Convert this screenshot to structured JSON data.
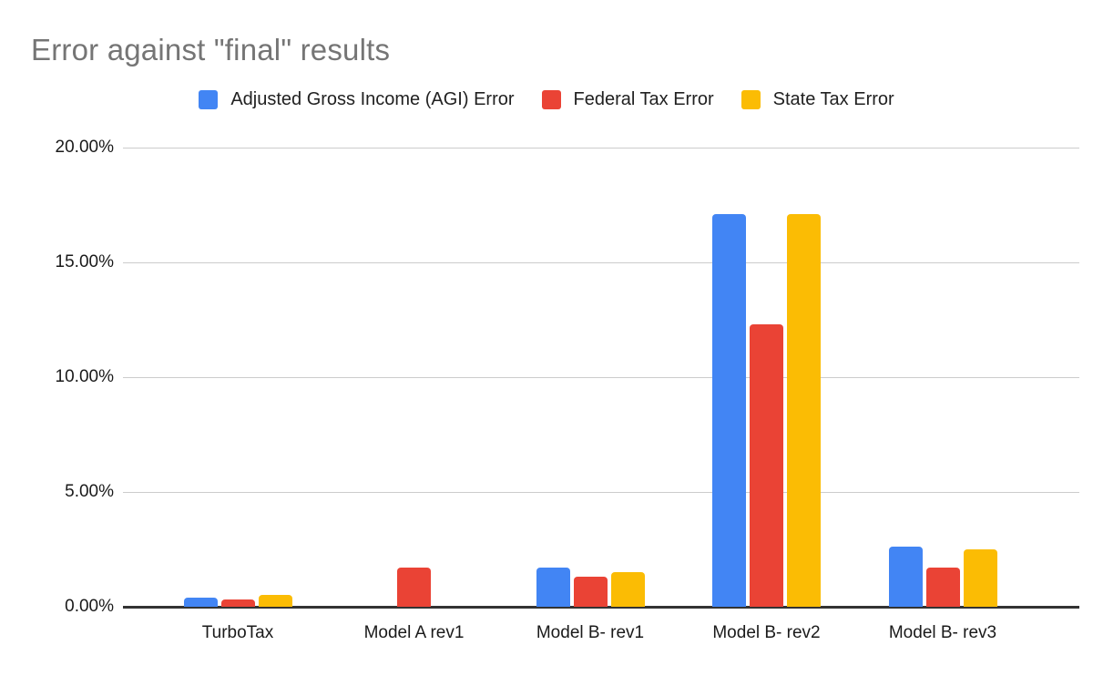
{
  "title": {
    "text": "Error against \"final\" results",
    "color": "#757575"
  },
  "chart_data": {
    "type": "bar",
    "title": "Error against \"final\" results",
    "categories": [
      "TurboTax",
      "Model A rev1",
      "Model B- rev1",
      "Model B- rev2",
      "Model B- rev3"
    ],
    "series": [
      {
        "name": "Adjusted Gross Income (AGI) Error",
        "color": "#4285F4",
        "values": [
          0.4,
          0,
          1.7,
          17.1,
          2.6
        ]
      },
      {
        "name": "Federal Tax Error",
        "color": "#EA4335",
        "values": [
          0.3,
          1.7,
          1.3,
          12.3,
          1.7
        ]
      },
      {
        "name": "State Tax Error",
        "color": "#FBBC04",
        "values": [
          0.5,
          0,
          1.5,
          17.1,
          2.5
        ]
      }
    ],
    "xlabel": "",
    "ylabel": "",
    "ylim": [
      0,
      20
    ],
    "ytick_values": [
      0,
      5,
      10,
      15,
      20
    ],
    "ytick_labels": [
      "0.00%",
      "5.00%",
      "10.00%",
      "15.00%",
      "20.00%"
    ],
    "grid": true,
    "legend_position": "top",
    "background": "#ffffff",
    "gridline_color": "#cccccc",
    "baseline_color": "#333333"
  }
}
